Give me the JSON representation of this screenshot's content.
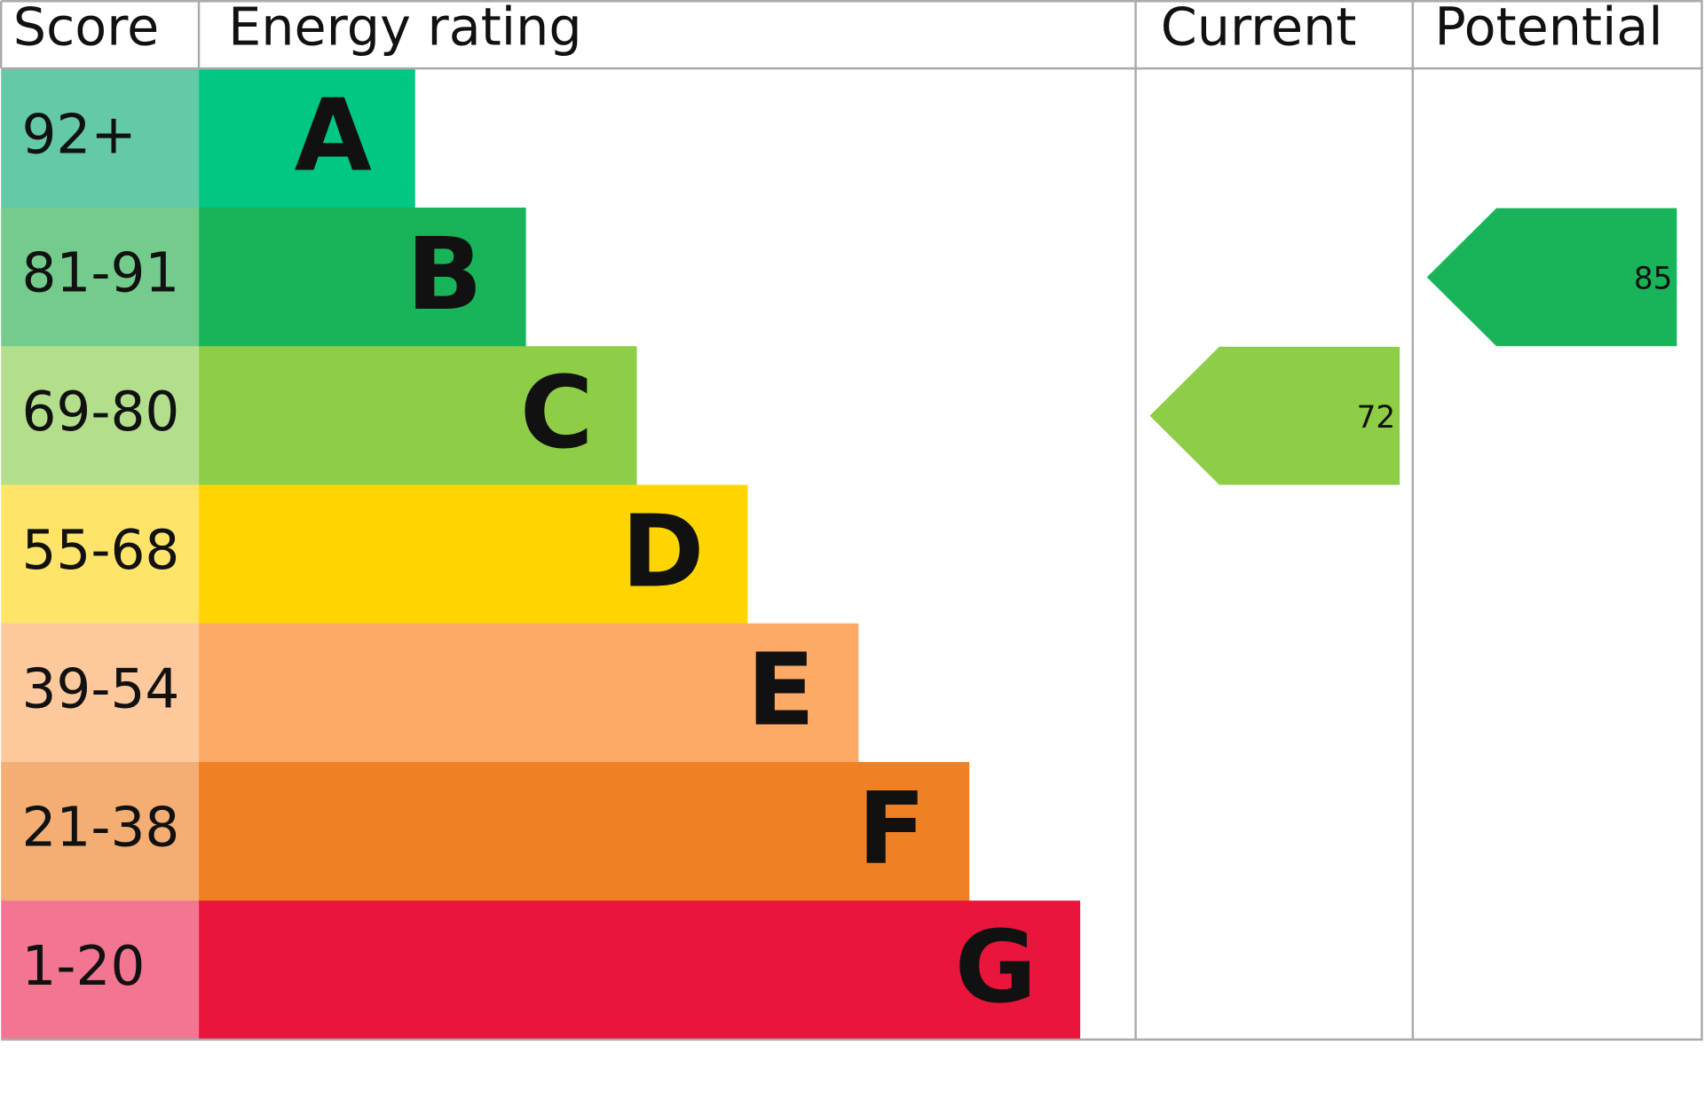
{
  "chart_data": {
    "type": "energy-rating",
    "headers": [
      "Score",
      "Energy rating",
      "Current",
      "Potential"
    ],
    "bands": [
      {
        "score": "92+",
        "letter": "A",
        "color": "#00c781",
        "score_color": "#64c9a6"
      },
      {
        "score": "81-91",
        "letter": "B",
        "color": "#19b459",
        "score_color": "#74cc8c"
      },
      {
        "score": "69-80",
        "letter": "C",
        "color": "#8dce46",
        "score_color": "#b3df8d"
      },
      {
        "score": "55-68",
        "letter": "D",
        "color": "#ffd500",
        "score_color": "#ffe469"
      },
      {
        "score": "39-54",
        "letter": "E",
        "color": "#fcaa65",
        "score_color": "#fdc89c"
      },
      {
        "score": "21-38",
        "letter": "F",
        "color": "#ef8023",
        "score_color": "#f4ae73"
      },
      {
        "score": "1-20",
        "letter": "G",
        "color": "#e9153b",
        "score_color": "#f27592"
      }
    ],
    "current": {
      "value": 72,
      "color": "#8dce46"
    },
    "potential": {
      "value": 85,
      "color": "#19b459"
    }
  }
}
